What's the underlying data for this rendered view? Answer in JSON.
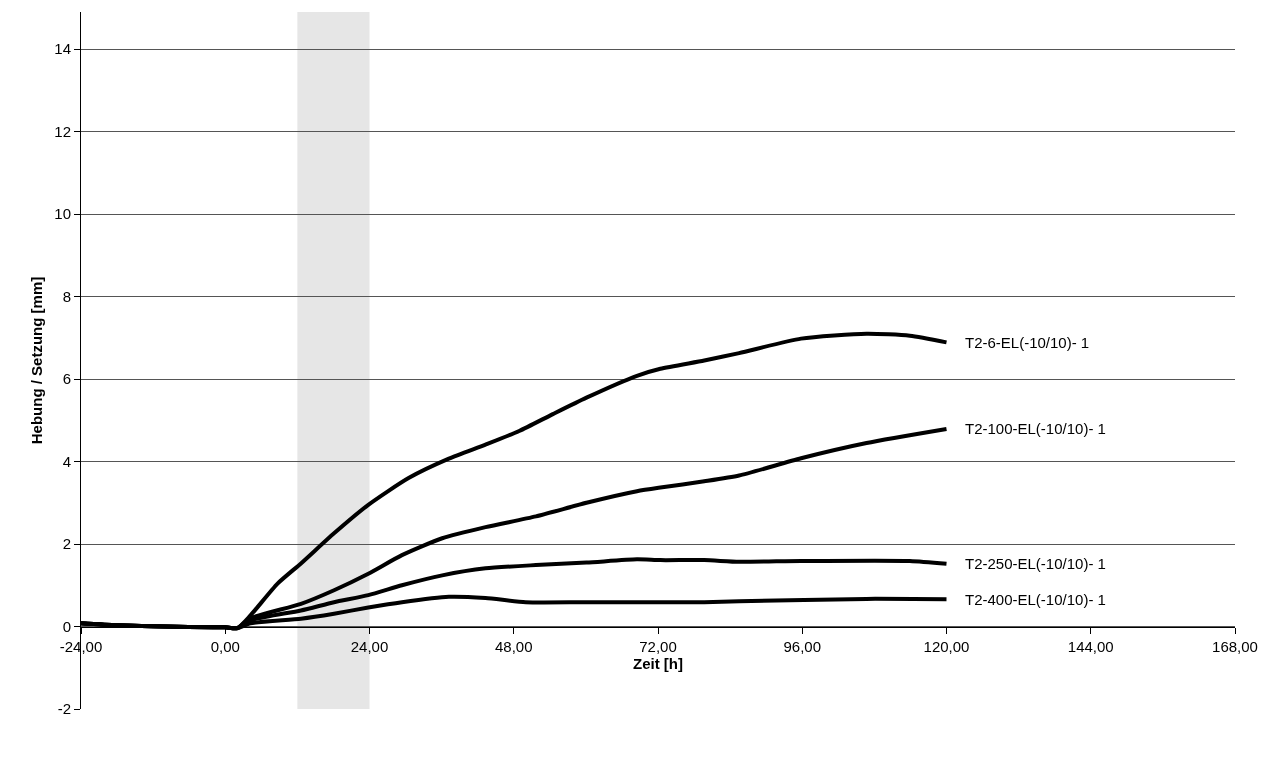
{
  "chart_data": {
    "type": "line",
    "xlabel": "Zeit [h]",
    "ylabel": "Hebung / Setzung [mm]",
    "xlim": [
      -24,
      168
    ],
    "ylim": [
      -2,
      14.9
    ],
    "xticks": [
      {
        "value": -24,
        "label": "-24,00"
      },
      {
        "value": 0,
        "label": "0,00"
      },
      {
        "value": 24,
        "label": "24,00"
      },
      {
        "value": 48,
        "label": "48,00"
      },
      {
        "value": 72,
        "label": "72,00"
      },
      {
        "value": 96,
        "label": "96,00"
      },
      {
        "value": 120,
        "label": "120,00"
      },
      {
        "value": 144,
        "label": "144,00"
      },
      {
        "value": 168,
        "label": "168,00"
      }
    ],
    "yticks": [
      -2,
      0,
      2,
      4,
      6,
      8,
      10,
      12,
      14
    ],
    "grid": "y",
    "legend": false,
    "marker": "none",
    "line_style": "solid",
    "bands": [
      {
        "axis": "x",
        "from": 12,
        "to": 24,
        "color": "#e6e6e6"
      }
    ],
    "series": [
      {
        "name": "T2-6-EL(-10/10)- 1",
        "color": "#000000",
        "x": [
          -24,
          -18,
          -10,
          -2,
          0,
          2,
          4.2,
          8.7,
          12.6,
          18.1,
          23.8,
          30.5,
          37.2,
          43.3,
          48.9,
          54.5,
          60.1,
          68.5,
          72.4,
          79.7,
          85.5,
          95.8,
          106.7,
          113.9,
          120
        ],
        "values": [
          0.08,
          0.03,
          0,
          -0.02,
          -0.02,
          -0.04,
          0.27,
          1.04,
          1.53,
          2.26,
          2.95,
          3.6,
          4.07,
          4.41,
          4.74,
          5.15,
          5.55,
          6.08,
          6.25,
          6.45,
          6.63,
          6.98,
          7.1,
          7.05,
          6.89
        ]
      },
      {
        "name": "T2-100-EL(-10/10)- 1",
        "color": "#000000",
        "x": [
          -24,
          -18,
          -10,
          -2,
          0,
          2,
          4.2,
          12.6,
          18.1,
          23.8,
          29.4,
          36.1,
          43.3,
          51.7,
          60.1,
          68.5,
          72.4,
          79.7,
          85.5,
          95.8,
          106.7,
          120
        ],
        "values": [
          0.08,
          0.03,
          0,
          -0.02,
          -0.02,
          -0.04,
          0.2,
          0.55,
          0.88,
          1.28,
          1.73,
          2.14,
          2.41,
          2.67,
          3,
          3.28,
          3.37,
          3.52,
          3.66,
          4.08,
          4.45,
          4.79
        ]
      },
      {
        "name": "T2-250-EL(-10/10)- 1",
        "color": "#000000",
        "x": [
          -24,
          -18,
          -10,
          -2,
          0,
          2,
          4.2,
          12.6,
          18.1,
          23.8,
          29.4,
          36.1,
          43.3,
          51.7,
          60.1,
          68.5,
          72.4,
          79.7,
          85.5,
          95.8,
          113.9,
          120
        ],
        "values": [
          0.08,
          0.03,
          0,
          -0.02,
          -0.02,
          -0.04,
          0.15,
          0.39,
          0.59,
          0.76,
          1,
          1.24,
          1.41,
          1.49,
          1.55,
          1.63,
          1.61,
          1.61,
          1.57,
          1.59,
          1.59,
          1.52
        ]
      },
      {
        "name": "T2-400-EL(-10/10)- 1",
        "color": "#000000",
        "x": [
          -24,
          -18,
          -10,
          -2,
          0,
          2,
          4.2,
          12.6,
          18.1,
          23.8,
          29.4,
          37.2,
          43.3,
          50,
          60.1,
          79.7,
          85.5,
          106.7,
          120
        ],
        "values": [
          0.08,
          0.03,
          0,
          -0.02,
          -0.02,
          -0.04,
          0.08,
          0.19,
          0.31,
          0.46,
          0.59,
          0.72,
          0.69,
          0.59,
          0.59,
          0.59,
          0.61,
          0.67,
          0.66
        ]
      }
    ]
  }
}
